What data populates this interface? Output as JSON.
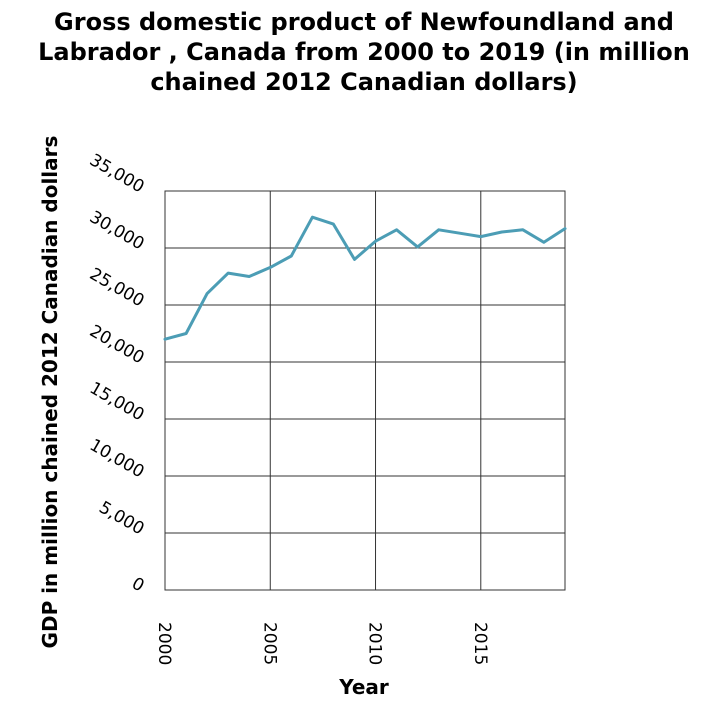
{
  "chart_data": {
    "type": "line",
    "title_lines": [
      "Gross domestic product of Newfoundland and",
      "Labrador , Canada from 2000 to 2019 (in million",
      "chained 2012 Canadian dollars)"
    ],
    "xlabel": "Year",
    "ylabel": "GDP in million chained 2012 Canadian dollars",
    "x": [
      2000,
      2001,
      2002,
      2003,
      2004,
      2005,
      2006,
      2007,
      2008,
      2009,
      2010,
      2011,
      2012,
      2013,
      2014,
      2015,
      2016,
      2017,
      2018,
      2019
    ],
    "series": [
      {
        "values": [
          22000,
          22500,
          26000,
          27800,
          27500,
          28300,
          29300,
          32700,
          32100,
          29000,
          30600,
          31600,
          30100,
          31600,
          31300,
          31000,
          31400,
          31600,
          30500,
          31700
        ]
      }
    ],
    "xlim": [
      2000,
      2019
    ],
    "ylim": [
      0,
      35000
    ],
    "xticks": [
      "2000",
      "2005",
      "2010",
      "2015"
    ],
    "xtick_values": [
      2000,
      2005,
      2010,
      2015
    ],
    "yticks": [
      "0",
      "5,000",
      "10,000",
      "15,000",
      "20,000",
      "25,000",
      "30,000",
      "35,000"
    ],
    "ytick_values": [
      0,
      5000,
      10000,
      15000,
      20000,
      25000,
      30000,
      35000
    ],
    "grid": true,
    "line_color": "#4c9db5"
  }
}
